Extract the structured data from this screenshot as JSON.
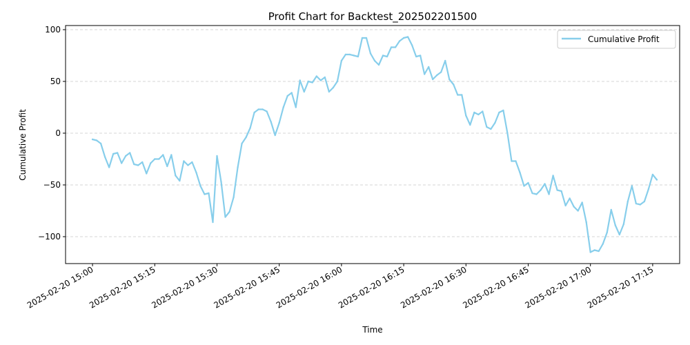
{
  "chart_data": {
    "type": "line",
    "title": "Profit Chart for Backtest_202502201500",
    "xlabel": "Time",
    "ylabel": "Cumulative Profit",
    "x_start": "2025-02-20 15:00",
    "x_step_minutes": 1,
    "xlim_minutes": [
      -6.5,
      141.5
    ],
    "ylim": [
      -126,
      104
    ],
    "x_ticks": [
      {
        "minute": 0,
        "label": "2025-02-20 15:00"
      },
      {
        "minute": 15,
        "label": "2025-02-20 15:15"
      },
      {
        "minute": 30,
        "label": "2025-02-20 15:30"
      },
      {
        "minute": 45,
        "label": "2025-02-20 15:45"
      },
      {
        "minute": 60,
        "label": "2025-02-20 16:00"
      },
      {
        "minute": 75,
        "label": "2025-02-20 16:15"
      },
      {
        "minute": 90,
        "label": "2025-02-20 16:30"
      },
      {
        "minute": 105,
        "label": "2025-02-20 16:45"
      },
      {
        "minute": 120,
        "label": "2025-02-20 17:00"
      },
      {
        "minute": 135,
        "label": "2025-02-20 17:15"
      }
    ],
    "y_ticks": [
      {
        "value": 100,
        "label": "100"
      },
      {
        "value": 50,
        "label": "50"
      },
      {
        "value": 0,
        "label": "0"
      },
      {
        "value": -50,
        "label": "−50"
      },
      {
        "value": -100,
        "label": "−100"
      }
    ],
    "grid": "y-dashed",
    "legend_position": "top-right",
    "series": [
      {
        "name": "Cumulative Profit",
        "color": "#87ceeb",
        "values": [
          -6,
          -7,
          -10,
          -23,
          -33,
          -20,
          -19,
          -29,
          -22,
          -19,
          -30,
          -31,
          -28,
          -39,
          -29,
          -25,
          -25,
          -21,
          -32,
          -21,
          -41,
          -46,
          -27,
          -31,
          -28,
          -38,
          -51,
          -59,
          -58,
          -86,
          -22,
          -47,
          -81,
          -76,
          -62,
          -33,
          -10,
          -4,
          5,
          20,
          23,
          23,
          21,
          11,
          -2,
          10,
          25,
          36,
          39,
          25,
          51,
          40,
          50,
          49,
          55,
          51,
          54,
          40,
          44,
          50,
          70,
          76,
          76,
          75,
          74,
          92,
          92,
          77,
          70,
          66,
          75,
          74,
          83,
          83,
          89,
          92,
          93,
          85,
          74,
          75,
          57,
          64,
          52,
          56,
          59,
          70,
          52,
          47,
          37,
          37,
          17,
          8,
          20,
          18,
          21,
          6,
          4,
          10,
          20,
          22,
          0,
          -27,
          -27,
          -38,
          -51,
          -48,
          -58,
          -59,
          -55,
          -49,
          -59,
          -41,
          -55,
          -56,
          -70,
          -63,
          -71,
          -75,
          -67,
          -86,
          -115,
          -113,
          -114,
          -107,
          -96,
          -74,
          -89,
          -98,
          -88,
          -66,
          -51,
          -68,
          -69,
          -66,
          -54,
          -40,
          -45
        ]
      }
    ]
  }
}
